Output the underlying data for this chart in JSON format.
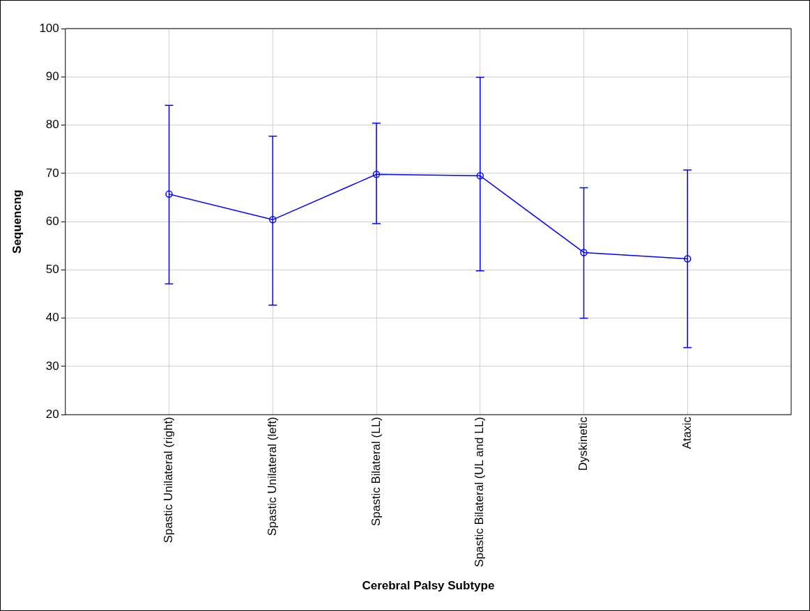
{
  "chart_data": {
    "type": "line",
    "xlabel": "Cerebral Palsy Subtype",
    "ylabel": "Sequencng",
    "categories": [
      "Spastic Unilateral (right)",
      "Spastic Unilateral (left)",
      "Spastic Bilateral (LL)",
      "Spastic Bilateral (UL and LL)",
      "Dyskinetic",
      "Ataxic"
    ],
    "values": [
      65.7,
      60.4,
      69.8,
      69.5,
      53.6,
      52.3
    ],
    "errors": [
      [
        47.1,
        84.1
      ],
      [
        42.7,
        77.7
      ],
      [
        59.6,
        80.4
      ],
      [
        49.8,
        89.9
      ],
      [
        40.0,
        67.0
      ],
      [
        33.9,
        70.7
      ]
    ],
    "color": "#0000ff",
    "marker": "circle",
    "line_style": "solid",
    "ylim": [
      20,
      100
    ],
    "yticks": [
      20,
      30,
      40,
      50,
      60,
      70,
      80,
      90,
      100
    ],
    "grid": true,
    "legend": false
  }
}
